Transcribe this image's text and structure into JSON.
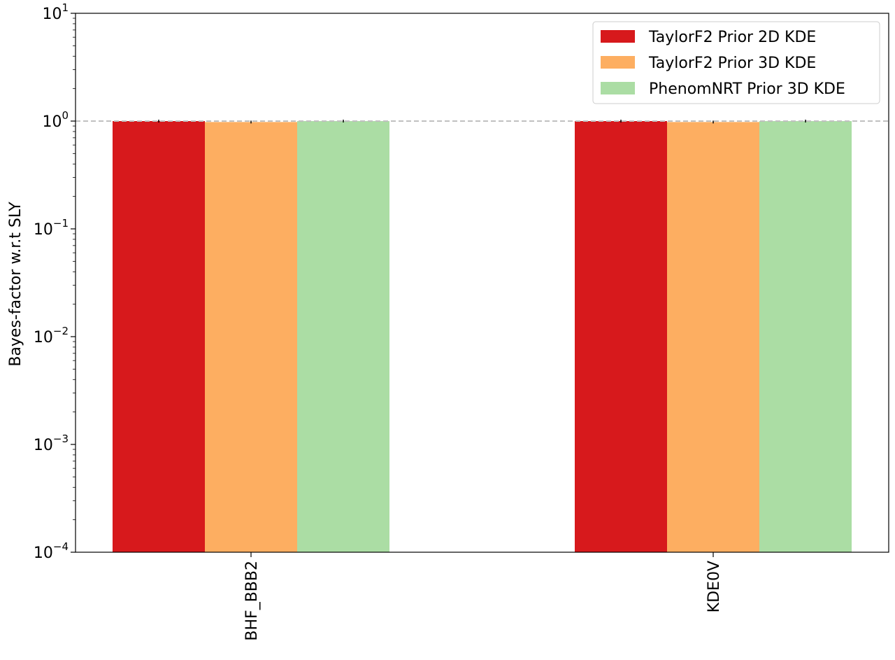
{
  "chart_data": {
    "type": "bar",
    "title": "",
    "xlabel": "",
    "ylabel": "Bayes-factor w.r.t SLY",
    "yscale": "log",
    "ylim": [
      0.0001,
      10
    ],
    "y_ticks": [
      {
        "value": 0.0001,
        "base": "10",
        "exp": "−4"
      },
      {
        "value": 0.001,
        "base": "10",
        "exp": "−3"
      },
      {
        "value": 0.01,
        "base": "10",
        "exp": "−2"
      },
      {
        "value": 0.1,
        "base": "10",
        "exp": "−1"
      },
      {
        "value": 1,
        "base": "10",
        "exp": "0"
      },
      {
        "value": 10,
        "base": "10",
        "exp": "1"
      }
    ],
    "categories": [
      "BHF_BBB2",
      "KDE0V"
    ],
    "series": [
      {
        "name": "TaylorF2 Prior 2D KDE",
        "color": "#d7191c",
        "values": [
          1.0,
          1.0
        ]
      },
      {
        "name": "TaylorF2 Prior 3D KDE",
        "color": "#fdae61",
        "values": [
          0.98,
          0.98
        ]
      },
      {
        "name": "PhenomNRT Prior 3D KDE",
        "color": "#abdda4",
        "values": [
          1.0,
          1.0
        ]
      }
    ],
    "reference_line": {
      "value": 1,
      "style": "dashed",
      "color": "#c0c0c0"
    },
    "grid": false,
    "legend_position": "top-right"
  }
}
